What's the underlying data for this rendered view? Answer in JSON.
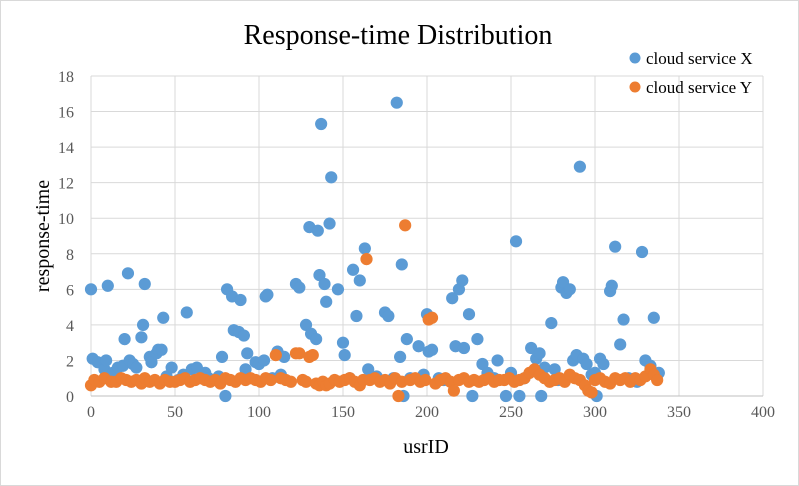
{
  "chart_data": {
    "type": "scatter",
    "title": "Response-time  Distribution",
    "xlabel": "usrID",
    "ylabel": "response-time",
    "xlim": [
      0,
      400
    ],
    "ylim": [
      0,
      18
    ],
    "x_ticks": [
      "0",
      "50",
      "100",
      "150",
      "200",
      "250",
      "300",
      "350",
      "400"
    ],
    "y_ticks": [
      "0",
      "2",
      "4",
      "6",
      "8",
      "10",
      "12",
      "14",
      "16",
      "18"
    ],
    "grid": "major-both",
    "legend_position": "top-right",
    "colors": {
      "series_x": "#5B9BD5",
      "series_y": "#ED7D31",
      "grid": "#d9d9d9",
      "axis": "#bfbfbf"
    },
    "series": [
      {
        "name": "cloud service X",
        "points": [
          [
            0,
            6.0
          ],
          [
            1,
            2.1
          ],
          [
            4,
            1.9
          ],
          [
            8,
            1.5
          ],
          [
            9,
            2.0
          ],
          [
            10,
            6.2
          ],
          [
            13,
            1.3
          ],
          [
            16,
            1.6
          ],
          [
            19,
            1.7
          ],
          [
            20,
            3.2
          ],
          [
            22,
            6.9
          ],
          [
            23,
            2.0
          ],
          [
            25,
            1.8
          ],
          [
            27,
            1.6
          ],
          [
            30,
            3.3
          ],
          [
            31,
            4.0
          ],
          [
            32,
            6.3
          ],
          [
            35,
            2.2
          ],
          [
            36,
            1.9
          ],
          [
            39,
            2.4
          ],
          [
            40,
            2.6
          ],
          [
            42,
            2.6
          ],
          [
            43,
            4.4
          ],
          [
            45,
            1.1
          ],
          [
            48,
            1.6
          ],
          [
            52,
            0.9
          ],
          [
            55,
            1.2
          ],
          [
            57,
            4.7
          ],
          [
            60,
            1.5
          ],
          [
            63,
            1.6
          ],
          [
            68,
            1.3
          ],
          [
            70,
            1.0
          ],
          [
            76,
            1.1
          ],
          [
            78,
            2.2
          ],
          [
            80,
            0.0
          ],
          [
            81,
            6.0
          ],
          [
            84,
            5.6
          ],
          [
            85,
            3.7
          ],
          [
            88,
            3.6
          ],
          [
            89,
            5.4
          ],
          [
            91,
            3.4
          ],
          [
            92,
            1.5
          ],
          [
            93,
            2.4
          ],
          [
            98,
            1.9
          ],
          [
            100,
            1.8
          ],
          [
            103,
            2.0
          ],
          [
            104,
            5.6
          ],
          [
            105,
            5.7
          ],
          [
            108,
            1.0
          ],
          [
            111,
            2.5
          ],
          [
            113,
            1.2
          ],
          [
            115,
            2.2
          ],
          [
            122,
            6.3
          ],
          [
            124,
            6.1
          ],
          [
            128,
            4.0
          ],
          [
            130,
            9.5
          ],
          [
            131,
            3.5
          ],
          [
            134,
            3.2
          ],
          [
            135,
            9.3
          ],
          [
            136,
            6.8
          ],
          [
            137,
            15.3
          ],
          [
            139,
            6.3
          ],
          [
            140,
            5.3
          ],
          [
            142,
            9.7
          ],
          [
            143,
            12.3
          ],
          [
            147,
            6.0
          ],
          [
            150,
            3.0
          ],
          [
            151,
            2.3
          ],
          [
            154,
            1.0
          ],
          [
            156,
            7.1
          ],
          [
            158,
            4.5
          ],
          [
            160,
            6.5
          ],
          [
            163,
            8.3
          ],
          [
            165,
            1.5
          ],
          [
            170,
            1.1
          ],
          [
            175,
            4.7
          ],
          [
            177,
            4.5
          ],
          [
            180,
            1.0
          ],
          [
            182,
            16.5
          ],
          [
            184,
            2.2
          ],
          [
            185,
            7.4
          ],
          [
            186,
            0.0
          ],
          [
            188,
            3.2
          ],
          [
            190,
            1.0
          ],
          [
            195,
            2.8
          ],
          [
            198,
            1.2
          ],
          [
            200,
            4.6
          ],
          [
            201,
            2.5
          ],
          [
            203,
            2.6
          ],
          [
            207,
            1.0
          ],
          [
            210,
            0.9
          ],
          [
            215,
            5.5
          ],
          [
            217,
            2.8
          ],
          [
            219,
            6.0
          ],
          [
            221,
            6.5
          ],
          [
            222,
            2.7
          ],
          [
            225,
            4.6
          ],
          [
            227,
            0.0
          ],
          [
            230,
            3.2
          ],
          [
            233,
            1.8
          ],
          [
            236,
            1.3
          ],
          [
            240,
            1.0
          ],
          [
            242,
            2.0
          ],
          [
            247,
            0.0
          ],
          [
            250,
            1.3
          ],
          [
            253,
            8.7
          ],
          [
            255,
            0.0
          ],
          [
            258,
            1.0
          ],
          [
            262,
            2.7
          ],
          [
            265,
            2.1
          ],
          [
            267,
            2.4
          ],
          [
            268,
            0.0
          ],
          [
            270,
            1.6
          ],
          [
            274,
            4.1
          ],
          [
            276,
            1.5
          ],
          [
            278,
            0.9
          ],
          [
            280,
            6.1
          ],
          [
            281,
            6.4
          ],
          [
            283,
            5.8
          ],
          [
            285,
            6.0
          ],
          [
            287,
            2.0
          ],
          [
            289,
            2.3
          ],
          [
            291,
            12.9
          ],
          [
            293,
            2.1
          ],
          [
            295,
            1.8
          ],
          [
            298,
            1.2
          ],
          [
            300,
            1.3
          ],
          [
            301,
            0.0
          ],
          [
            303,
            2.1
          ],
          [
            305,
            1.8
          ],
          [
            309,
            5.9
          ],
          [
            310,
            6.2
          ],
          [
            312,
            8.4
          ],
          [
            315,
            2.9
          ],
          [
            317,
            4.3
          ],
          [
            320,
            1.0
          ],
          [
            325,
            0.8
          ],
          [
            328,
            8.1
          ],
          [
            330,
            2.0
          ],
          [
            333,
            1.7
          ],
          [
            335,
            4.4
          ],
          [
            338,
            1.3
          ]
        ]
      },
      {
        "name": "cloud service Y",
        "points": [
          [
            0,
            0.6
          ],
          [
            2,
            0.9
          ],
          [
            5,
            0.8
          ],
          [
            8,
            1.0
          ],
          [
            12,
            0.8
          ],
          [
            15,
            0.8
          ],
          [
            18,
            1.0
          ],
          [
            21,
            0.9
          ],
          [
            24,
            0.8
          ],
          [
            27,
            0.9
          ],
          [
            30,
            0.7
          ],
          [
            32,
            1.0
          ],
          [
            35,
            0.8
          ],
          [
            38,
            0.9
          ],
          [
            41,
            0.7
          ],
          [
            44,
            0.9
          ],
          [
            47,
            0.8
          ],
          [
            50,
            0.8
          ],
          [
            53,
            0.9
          ],
          [
            56,
            1.0
          ],
          [
            59,
            0.8
          ],
          [
            62,
            0.9
          ],
          [
            65,
            1.0
          ],
          [
            68,
            0.9
          ],
          [
            71,
            0.8
          ],
          [
            74,
            0.9
          ],
          [
            77,
            0.7
          ],
          [
            80,
            1.0
          ],
          [
            83,
            0.9
          ],
          [
            86,
            0.8
          ],
          [
            89,
            1.0
          ],
          [
            92,
            0.9
          ],
          [
            95,
            1.0
          ],
          [
            98,
            0.9
          ],
          [
            101,
            0.8
          ],
          [
            104,
            1.0
          ],
          [
            107,
            0.9
          ],
          [
            110,
            2.3
          ],
          [
            113,
            1.0
          ],
          [
            116,
            0.9
          ],
          [
            119,
            0.8
          ],
          [
            122,
            2.4
          ],
          [
            124,
            2.4
          ],
          [
            126,
            0.9
          ],
          [
            128,
            0.8
          ],
          [
            130,
            2.2
          ],
          [
            132,
            2.3
          ],
          [
            134,
            0.7
          ],
          [
            136,
            0.6
          ],
          [
            138,
            0.8
          ],
          [
            140,
            0.6
          ],
          [
            142,
            0.7
          ],
          [
            145,
            0.9
          ],
          [
            148,
            0.8
          ],
          [
            151,
            0.9
          ],
          [
            154,
            1.0
          ],
          [
            157,
            0.8
          ],
          [
            160,
            0.6
          ],
          [
            162,
            0.9
          ],
          [
            164,
            7.7
          ],
          [
            166,
            0.9
          ],
          [
            169,
            1.0
          ],
          [
            172,
            0.8
          ],
          [
            175,
            0.9
          ],
          [
            178,
            0.7
          ],
          [
            181,
            1.0
          ],
          [
            183,
            0.0
          ],
          [
            185,
            0.8
          ],
          [
            187,
            9.6
          ],
          [
            190,
            0.9
          ],
          [
            193,
            1.0
          ],
          [
            196,
            0.8
          ],
          [
            199,
            0.9
          ],
          [
            201,
            4.3
          ],
          [
            203,
            4.4
          ],
          [
            205,
            0.7
          ],
          [
            208,
            0.9
          ],
          [
            211,
            1.0
          ],
          [
            214,
            0.8
          ],
          [
            216,
            0.3
          ],
          [
            219,
            0.9
          ],
          [
            222,
            1.0
          ],
          [
            225,
            0.8
          ],
          [
            228,
            0.9
          ],
          [
            231,
            0.8
          ],
          [
            234,
            0.9
          ],
          [
            237,
            1.0
          ],
          [
            240,
            0.8
          ],
          [
            243,
            0.9
          ],
          [
            246,
            0.9
          ],
          [
            249,
            1.0
          ],
          [
            252,
            0.8
          ],
          [
            255,
            0.9
          ],
          [
            258,
            1.0
          ],
          [
            261,
            1.3
          ],
          [
            264,
            1.5
          ],
          [
            267,
            1.2
          ],
          [
            270,
            1.0
          ],
          [
            273,
            0.8
          ],
          [
            276,
            0.9
          ],
          [
            279,
            1.0
          ],
          [
            282,
            0.8
          ],
          [
            285,
            1.2
          ],
          [
            288,
            1.0
          ],
          [
            291,
            0.9
          ],
          [
            294,
            0.6
          ],
          [
            296,
            0.3
          ],
          [
            298,
            0.2
          ],
          [
            300,
            0.9
          ],
          [
            303,
            1.0
          ],
          [
            306,
            0.8
          ],
          [
            309,
            0.7
          ],
          [
            312,
            1.0
          ],
          [
            315,
            0.9
          ],
          [
            318,
            1.0
          ],
          [
            321,
            0.8
          ],
          [
            324,
            1.0
          ],
          [
            327,
            0.9
          ],
          [
            330,
            1.1
          ],
          [
            333,
            1.5
          ],
          [
            335,
            1.2
          ],
          [
            337,
            0.9
          ]
        ]
      }
    ]
  }
}
